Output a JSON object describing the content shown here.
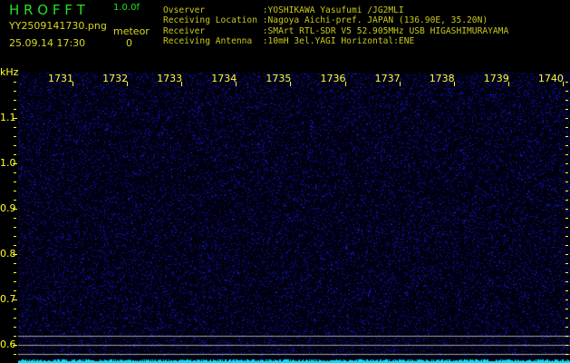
{
  "header": {
    "title": "H R O F F T",
    "version": "1.0.0f",
    "filename": "YY2509141730.png",
    "datetime": "25.09.14 17:30",
    "meteor_label": "meteor",
    "meteor_count": "0"
  },
  "info": [
    {
      "label": "Ovserver           ",
      "value": ":YOSHIKAWA Yasufumi /JG2MLI"
    },
    {
      "label": "Receiving Location ",
      "value": ":Nagoya Aichi-pref. JAPAN (136.90E, 35.20N)"
    },
    {
      "label": "Receiver           ",
      "value": ":SMArt RTL-SDR V5 52.905MHz USB HIGASHIMURAYAMA"
    },
    {
      "label": "Receiving Antenna  ",
      "value": ":10mH 3el.YAGI Horizontal:ENE"
    }
  ],
  "spectrogram": {
    "y_unit": "kHz",
    "y_ticks": [
      "1.1",
      "1.0",
      "0.9",
      "0.8",
      "0.7",
      "0.6"
    ],
    "x_ticks": [
      "1731",
      "1732",
      "1733",
      "1734",
      "1735",
      "1736",
      "1737",
      "1738",
      "1739",
      "1740"
    ],
    "colors": {
      "noise": "#1010d0",
      "axis": "#ffff30",
      "baseline": "#00e0ff",
      "reference_lines": "#a0a0a0"
    }
  }
}
